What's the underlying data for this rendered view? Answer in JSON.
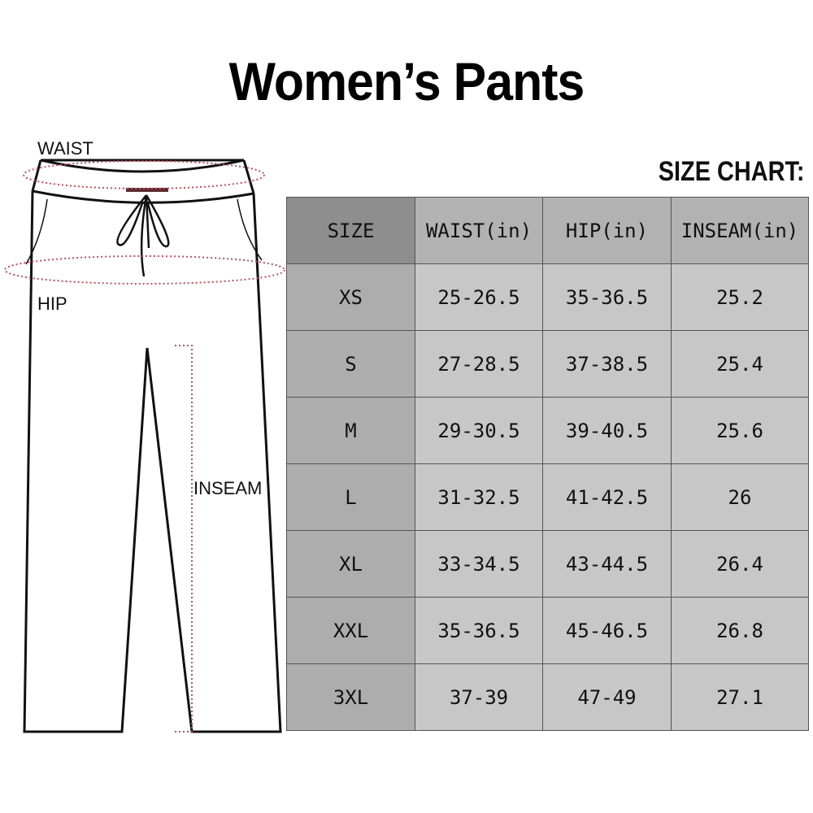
{
  "title": "Women’s Pants",
  "size_chart_label": "SIZE CHART:",
  "diagram": {
    "waist": "WAIST",
    "hip": "HIP",
    "inseam": "INSEAM"
  },
  "table": {
    "headers": [
      "SIZE",
      "WAIST(in)",
      "HIP(in)",
      "INSEAM(in)"
    ],
    "rows": [
      [
        "XS",
        "25-26.5",
        "35-36.5",
        "25.2"
      ],
      [
        "S",
        "27-28.5",
        "37-38.5",
        "25.4"
      ],
      [
        "M",
        "29-30.5",
        "39-40.5",
        "25.6"
      ],
      [
        "L",
        "31-32.5",
        "41-42.5",
        "26"
      ],
      [
        "XL",
        "33-34.5",
        "43-44.5",
        "26.4"
      ],
      [
        "XXL",
        "35-36.5",
        "45-46.5",
        "26.8"
      ],
      [
        "3XL",
        "37-39",
        "47-49",
        "27.1"
      ]
    ]
  },
  "colors": {
    "measure_line": "#c0505a"
  }
}
